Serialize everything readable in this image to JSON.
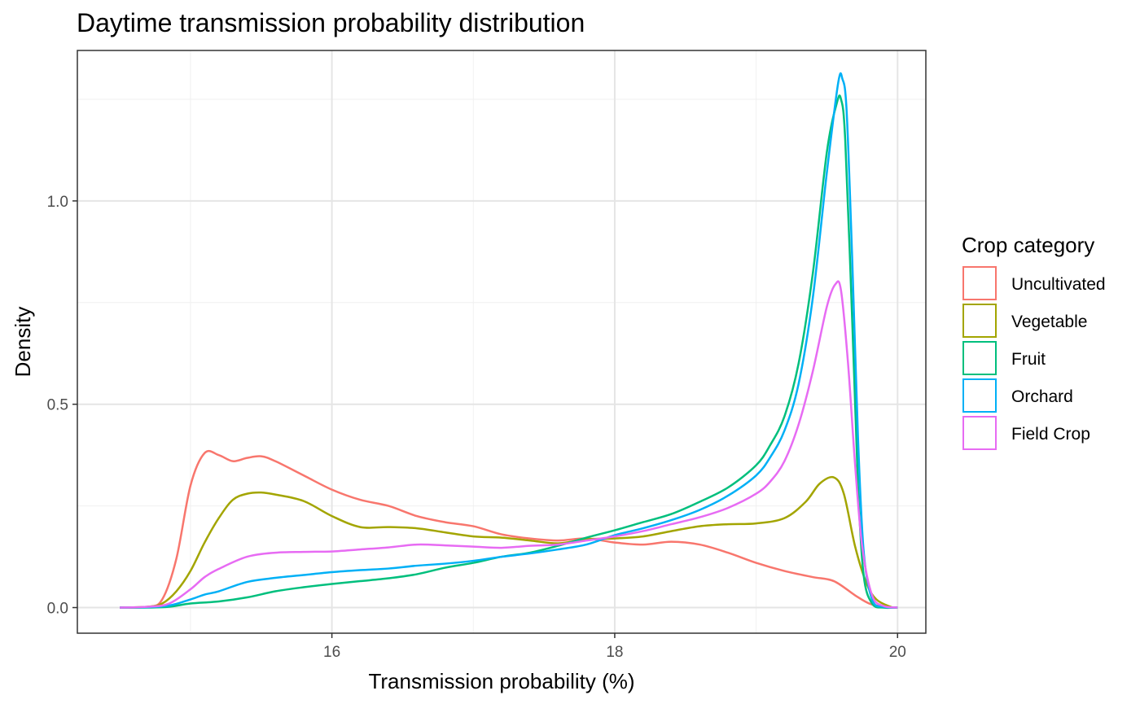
{
  "chart_data": {
    "type": "line",
    "title": "Daytime transmission probability distribution",
    "xlabel": "Transmission probability (%)",
    "ylabel": "Density",
    "xlim": [
      14.2,
      20.2
    ],
    "ylim": [
      -0.063,
      1.37
    ],
    "x_ticks": [
      16,
      18,
      20
    ],
    "x_ticks_minor": [
      15,
      17,
      19
    ],
    "y_ticks": [
      0.0,
      0.5,
      1.0
    ],
    "y_tick_labels": [
      "0.0",
      "0.5",
      "1.0"
    ],
    "y_ticks_minor": [
      0.25,
      0.75,
      1.25
    ],
    "grid": true,
    "legend": {
      "title": "Crop category",
      "position": "right"
    },
    "series": [
      {
        "name": "Uncultivated",
        "color": "#F8766D",
        "points": [
          [
            14.5,
            0.0
          ],
          [
            14.7,
            0.002
          ],
          [
            14.8,
            0.02
          ],
          [
            14.9,
            0.12
          ],
          [
            15.0,
            0.3
          ],
          [
            15.1,
            0.38
          ],
          [
            15.2,
            0.375
          ],
          [
            15.3,
            0.36
          ],
          [
            15.4,
            0.368
          ],
          [
            15.5,
            0.372
          ],
          [
            15.6,
            0.36
          ],
          [
            15.8,
            0.325
          ],
          [
            16.0,
            0.29
          ],
          [
            16.2,
            0.265
          ],
          [
            16.4,
            0.25
          ],
          [
            16.6,
            0.225
          ],
          [
            16.8,
            0.21
          ],
          [
            17.0,
            0.2
          ],
          [
            17.2,
            0.18
          ],
          [
            17.4,
            0.17
          ],
          [
            17.6,
            0.165
          ],
          [
            17.8,
            0.17
          ],
          [
            18.0,
            0.16
          ],
          [
            18.2,
            0.155
          ],
          [
            18.4,
            0.162
          ],
          [
            18.6,
            0.155
          ],
          [
            18.8,
            0.135
          ],
          [
            19.0,
            0.11
          ],
          [
            19.2,
            0.09
          ],
          [
            19.4,
            0.075
          ],
          [
            19.55,
            0.065
          ],
          [
            19.7,
            0.03
          ],
          [
            19.8,
            0.01
          ],
          [
            19.9,
            0.002
          ],
          [
            20.0,
            0.0
          ]
        ]
      },
      {
        "name": "Vegetable",
        "color": "#A3A500",
        "points": [
          [
            14.5,
            0.0
          ],
          [
            14.7,
            0.002
          ],
          [
            14.8,
            0.01
          ],
          [
            14.9,
            0.04
          ],
          [
            15.0,
            0.09
          ],
          [
            15.1,
            0.16
          ],
          [
            15.2,
            0.22
          ],
          [
            15.3,
            0.265
          ],
          [
            15.4,
            0.28
          ],
          [
            15.5,
            0.283
          ],
          [
            15.6,
            0.278
          ],
          [
            15.8,
            0.262
          ],
          [
            16.0,
            0.225
          ],
          [
            16.2,
            0.198
          ],
          [
            16.4,
            0.198
          ],
          [
            16.6,
            0.195
          ],
          [
            16.8,
            0.185
          ],
          [
            17.0,
            0.175
          ],
          [
            17.2,
            0.172
          ],
          [
            17.4,
            0.165
          ],
          [
            17.6,
            0.158
          ],
          [
            17.8,
            0.168
          ],
          [
            18.0,
            0.17
          ],
          [
            18.2,
            0.175
          ],
          [
            18.4,
            0.188
          ],
          [
            18.6,
            0.2
          ],
          [
            18.8,
            0.205
          ],
          [
            19.0,
            0.207
          ],
          [
            19.2,
            0.22
          ],
          [
            19.35,
            0.26
          ],
          [
            19.45,
            0.305
          ],
          [
            19.55,
            0.32
          ],
          [
            19.62,
            0.28
          ],
          [
            19.7,
            0.15
          ],
          [
            19.78,
            0.06
          ],
          [
            19.85,
            0.02
          ],
          [
            19.95,
            0.002
          ],
          [
            20.0,
            0.0
          ]
        ]
      },
      {
        "name": "Fruit",
        "color": "#00BF7D",
        "points": [
          [
            14.5,
            0.0
          ],
          [
            14.7,
            0.0
          ],
          [
            14.85,
            0.002
          ],
          [
            15.0,
            0.01
          ],
          [
            15.2,
            0.015
          ],
          [
            15.4,
            0.025
          ],
          [
            15.6,
            0.04
          ],
          [
            15.8,
            0.05
          ],
          [
            16.0,
            0.058
          ],
          [
            16.2,
            0.065
          ],
          [
            16.4,
            0.072
          ],
          [
            16.6,
            0.082
          ],
          [
            16.8,
            0.098
          ],
          [
            17.0,
            0.11
          ],
          [
            17.2,
            0.125
          ],
          [
            17.4,
            0.135
          ],
          [
            17.6,
            0.152
          ],
          [
            17.8,
            0.172
          ],
          [
            18.0,
            0.19
          ],
          [
            18.2,
            0.21
          ],
          [
            18.4,
            0.23
          ],
          [
            18.6,
            0.26
          ],
          [
            18.8,
            0.295
          ],
          [
            19.0,
            0.35
          ],
          [
            19.1,
            0.4
          ],
          [
            19.2,
            0.47
          ],
          [
            19.3,
            0.6
          ],
          [
            19.4,
            0.82
          ],
          [
            19.5,
            1.12
          ],
          [
            19.57,
            1.24
          ],
          [
            19.6,
            1.25
          ],
          [
            19.63,
            1.15
          ],
          [
            19.68,
            0.7
          ],
          [
            19.72,
            0.3
          ],
          [
            19.76,
            0.08
          ],
          [
            19.82,
            0.01
          ],
          [
            19.9,
            0.0
          ],
          [
            20.0,
            0.0
          ]
        ]
      },
      {
        "name": "Orchard",
        "color": "#00B0F6",
        "points": [
          [
            14.5,
            0.0
          ],
          [
            14.7,
            0.001
          ],
          [
            14.85,
            0.005
          ],
          [
            15.0,
            0.02
          ],
          [
            15.1,
            0.032
          ],
          [
            15.2,
            0.04
          ],
          [
            15.4,
            0.063
          ],
          [
            15.6,
            0.073
          ],
          [
            15.8,
            0.08
          ],
          [
            16.0,
            0.087
          ],
          [
            16.2,
            0.092
          ],
          [
            16.4,
            0.096
          ],
          [
            16.6,
            0.103
          ],
          [
            16.8,
            0.108
          ],
          [
            17.0,
            0.115
          ],
          [
            17.2,
            0.125
          ],
          [
            17.4,
            0.133
          ],
          [
            17.6,
            0.143
          ],
          [
            17.8,
            0.155
          ],
          [
            18.0,
            0.178
          ],
          [
            18.2,
            0.195
          ],
          [
            18.4,
            0.215
          ],
          [
            18.6,
            0.24
          ],
          [
            18.8,
            0.275
          ],
          [
            19.0,
            0.325
          ],
          [
            19.1,
            0.37
          ],
          [
            19.2,
            0.435
          ],
          [
            19.3,
            0.55
          ],
          [
            19.4,
            0.76
          ],
          [
            19.5,
            1.07
          ],
          [
            19.58,
            1.29
          ],
          [
            19.61,
            1.3
          ],
          [
            19.64,
            1.22
          ],
          [
            19.68,
            0.85
          ],
          [
            19.72,
            0.42
          ],
          [
            19.76,
            0.14
          ],
          [
            19.82,
            0.02
          ],
          [
            19.9,
            0.002
          ],
          [
            20.0,
            0.0
          ]
        ]
      },
      {
        "name": "Field Crop",
        "color": "#E76BF3",
        "points": [
          [
            14.5,
            0.0
          ],
          [
            14.7,
            0.002
          ],
          [
            14.85,
            0.01
          ],
          [
            15.0,
            0.045
          ],
          [
            15.1,
            0.075
          ],
          [
            15.2,
            0.095
          ],
          [
            15.4,
            0.125
          ],
          [
            15.6,
            0.135
          ],
          [
            15.8,
            0.137
          ],
          [
            16.0,
            0.138
          ],
          [
            16.2,
            0.143
          ],
          [
            16.4,
            0.148
          ],
          [
            16.6,
            0.155
          ],
          [
            16.8,
            0.153
          ],
          [
            17.0,
            0.15
          ],
          [
            17.2,
            0.147
          ],
          [
            17.4,
            0.152
          ],
          [
            17.6,
            0.155
          ],
          [
            17.8,
            0.165
          ],
          [
            18.0,
            0.175
          ],
          [
            18.2,
            0.188
          ],
          [
            18.4,
            0.205
          ],
          [
            18.6,
            0.222
          ],
          [
            18.8,
            0.245
          ],
          [
            19.0,
            0.28
          ],
          [
            19.1,
            0.31
          ],
          [
            19.2,
            0.36
          ],
          [
            19.3,
            0.45
          ],
          [
            19.4,
            0.58
          ],
          [
            19.5,
            0.74
          ],
          [
            19.56,
            0.795
          ],
          [
            19.6,
            0.78
          ],
          [
            19.65,
            0.6
          ],
          [
            19.7,
            0.35
          ],
          [
            19.75,
            0.15
          ],
          [
            19.82,
            0.03
          ],
          [
            19.9,
            0.004
          ],
          [
            20.0,
            0.0
          ]
        ]
      }
    ]
  }
}
